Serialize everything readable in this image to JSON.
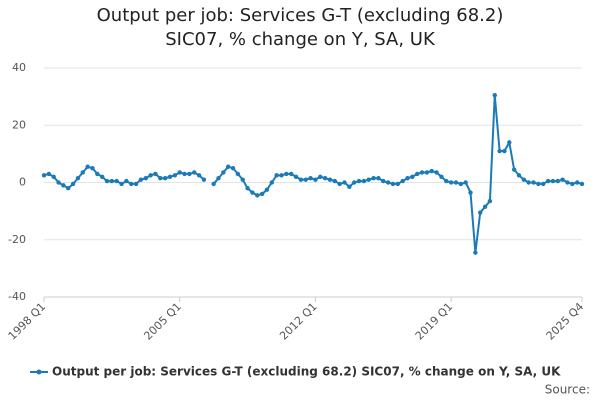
{
  "chart_data": {
    "type": "line",
    "title": "Output per job: Services G-T (excluding 68.2) SIC07, % change on Y, SA, UK",
    "source": "Source:",
    "categories": [
      "1998 Q1",
      null,
      null,
      null,
      null,
      null,
      null,
      null,
      null,
      null,
      null,
      null,
      null,
      null,
      null,
      null,
      null,
      null,
      null,
      null,
      null,
      null,
      null,
      null,
      null,
      null,
      null,
      null,
      "2005 Q1",
      null,
      null,
      null,
      null,
      null,
      null,
      null,
      null,
      null,
      null,
      null,
      null,
      null,
      null,
      null,
      null,
      null,
      null,
      null,
      null,
      null,
      null,
      null,
      null,
      null,
      null,
      null,
      "2012 Q1",
      null,
      null,
      null,
      null,
      null,
      null,
      null,
      null,
      null,
      null,
      null,
      null,
      null,
      null,
      null,
      null,
      null,
      null,
      null,
      null,
      null,
      null,
      null,
      null,
      null,
      null,
      null,
      "2019 Q1",
      null,
      null,
      null,
      null,
      null,
      null,
      null,
      null,
      null,
      null,
      null,
      null,
      null,
      null,
      null,
      null,
      null,
      null,
      null,
      null,
      null,
      null,
      null,
      null,
      null,
      null,
      "2025 Q4"
    ],
    "series": [
      {
        "name": "Output per job: Services G-T (excluding 68.2) SIC07, % change on Y, SA, UK",
        "color": "#1b7ab8",
        "values": [
          2.5,
          3,
          2,
          0,
          -1,
          -2,
          -0.5,
          1.5,
          3.5,
          5.5,
          5,
          3,
          2,
          0.5,
          0.5,
          0.5,
          -0.5,
          0.5,
          -0.5,
          -0.5,
          1,
          1.5,
          2.5,
          3,
          1.5,
          1.5,
          2,
          2.5,
          3.5,
          3,
          3,
          3.5,
          2.5,
          1,
          null,
          -0.5,
          1.5,
          3.5,
          5.5,
          5,
          3,
          1,
          -2,
          -3.5,
          -4.5,
          -4,
          -2.5,
          0,
          2.5,
          2.5,
          3,
          3,
          2,
          1,
          1,
          1.5,
          1,
          2,
          1.5,
          1,
          0.5,
          -0.5,
          0,
          -1.5,
          0,
          0.5,
          0.5,
          1,
          1.5,
          1.5,
          0.5,
          0,
          -0.5,
          -0.5,
          0.5,
          1.5,
          2,
          3,
          3.5,
          3.5,
          4,
          3.5,
          2,
          0.5,
          0,
          0,
          -0.5,
          0,
          -3.5,
          -24.5,
          -10.5,
          -8.5,
          -6.5,
          30.5,
          11,
          11,
          14,
          4.5,
          2.5,
          1,
          0,
          0,
          -0.5,
          -0.5,
          0.5,
          0.5,
          0.5,
          1,
          0,
          -0.5,
          0,
          -0.5
        ]
      }
    ],
    "ylim": [
      -40,
      40
    ],
    "yticks": [
      -40,
      -20,
      0,
      20,
      40
    ],
    "grid": true
  }
}
